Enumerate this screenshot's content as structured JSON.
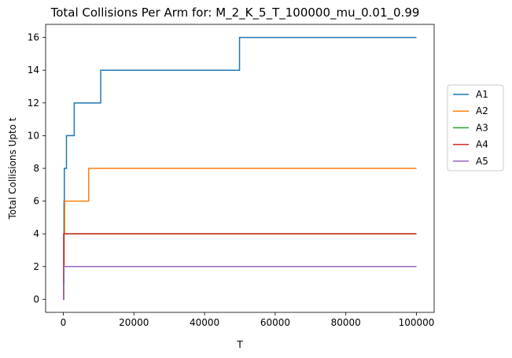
{
  "chart_data": {
    "type": "line",
    "title": "Total Collisions Per Arm for: M_2_K_5_T_100000_mu_0.01_0.99",
    "xlabel": "T",
    "ylabel": "Total Collisions Upto t",
    "xlim": [
      -5000,
      105000
    ],
    "ylim": [
      -0.8,
      16.8
    ],
    "xticks": [
      0,
      20000,
      40000,
      60000,
      80000,
      100000
    ],
    "yticks": [
      0,
      2,
      4,
      6,
      8,
      10,
      12,
      14,
      16
    ],
    "grid": false,
    "legend_position": "right",
    "series": [
      {
        "name": "A1",
        "color": "#1f77b4",
        "steps": [
          [
            0,
            0
          ],
          [
            100,
            4
          ],
          [
            200,
            6
          ],
          [
            300,
            8
          ],
          [
            800,
            8
          ],
          [
            900,
            10
          ],
          [
            3000,
            10
          ],
          [
            3100,
            12
          ],
          [
            10500,
            12
          ],
          [
            10600,
            14
          ],
          [
            49800,
            14
          ],
          [
            49900,
            16
          ],
          [
            100000,
            16
          ]
        ]
      },
      {
        "name": "A2",
        "color": "#ff7f0e",
        "steps": [
          [
            0,
            0
          ],
          [
            100,
            2
          ],
          [
            200,
            4
          ],
          [
            400,
            6
          ],
          [
            7100,
            6
          ],
          [
            7200,
            8
          ],
          [
            100000,
            8
          ]
        ]
      },
      {
        "name": "A3",
        "color": "#2ca02c",
        "steps": [
          [
            0,
            0
          ],
          [
            100,
            2
          ],
          [
            200,
            4
          ],
          [
            100000,
            4
          ]
        ]
      },
      {
        "name": "A4",
        "color": "#d62728",
        "steps": [
          [
            0,
            0
          ],
          [
            100,
            2
          ],
          [
            200,
            4
          ],
          [
            100000,
            4
          ]
        ]
      },
      {
        "name": "A5",
        "color": "#9467bd",
        "steps": [
          [
            0,
            0
          ],
          [
            100,
            1
          ],
          [
            200,
            2
          ],
          [
            100000,
            2
          ]
        ]
      }
    ]
  }
}
